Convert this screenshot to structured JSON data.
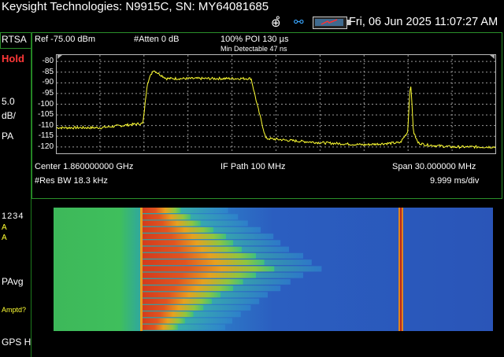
{
  "title_bar": {
    "title": "Keysight Technologies: N9915C, SN: MY64081685",
    "datetime": "Fri, 06 Jun 2025 11:07:27 AM",
    "gps_icon": "gps-crosshair-icon",
    "usb_icon": "usb-icon",
    "battery_icon": "battery-icon"
  },
  "side": {
    "mode": "RTSA",
    "state": "Hold",
    "scale_value": "5.0",
    "scale_unit": "dB/",
    "detector": "PA",
    "trace_numbers": "1234",
    "trace_a1": "A",
    "trace_a2": "A",
    "avg_mode": "PAvg",
    "amptd_prompt": "Amptd?",
    "gps_status": "GPS H"
  },
  "top_info": {
    "ref_level": "Ref -75.00 dBm",
    "atten": "#Atten 0 dB",
    "poi": "100% POI 130 µs",
    "min_detectable": "Min Detectable 47 ns"
  },
  "bottom_info": {
    "center": "Center 1.860000000 GHz",
    "if_path": "IF Path 100 MHz",
    "span": "Span 30.000000 MHz",
    "rbw": "#Res BW 18.3 kHz",
    "sweep": "9.999 ms/div"
  },
  "colors": {
    "trace": "#ffff33",
    "border": "#2a8f2a",
    "hold": "#ff3838",
    "usb": "#39a6ff"
  },
  "chart_data": {
    "type": "line",
    "x": [
      1845.0,
      1848.0,
      1850.9,
      1851.2,
      1851.6,
      1852.5,
      1855.0,
      1857.0,
      1858.3,
      1858.7,
      1859.3,
      1861.0,
      1863.0,
      1866.0,
      1868.5,
      1869.0,
      1869.2,
      1869.4,
      1869.7,
      1870.2,
      1872.0,
      1875.0
    ],
    "y": [
      -111,
      -111,
      -109,
      -90,
      -84,
      -88,
      -88,
      -88,
      -88,
      -100,
      -116,
      -117,
      -118,
      -119,
      -118,
      -113,
      -89,
      -113,
      -118,
      -119,
      -120,
      -120
    ],
    "yticks": [
      "-80",
      "-85",
      "-90",
      "-95",
      "-100",
      "-105",
      "-110",
      "-115",
      "-120"
    ],
    "ylim": [
      -123,
      -77
    ],
    "xlim": [
      1845.0,
      1875.0
    ],
    "grid": true
  }
}
